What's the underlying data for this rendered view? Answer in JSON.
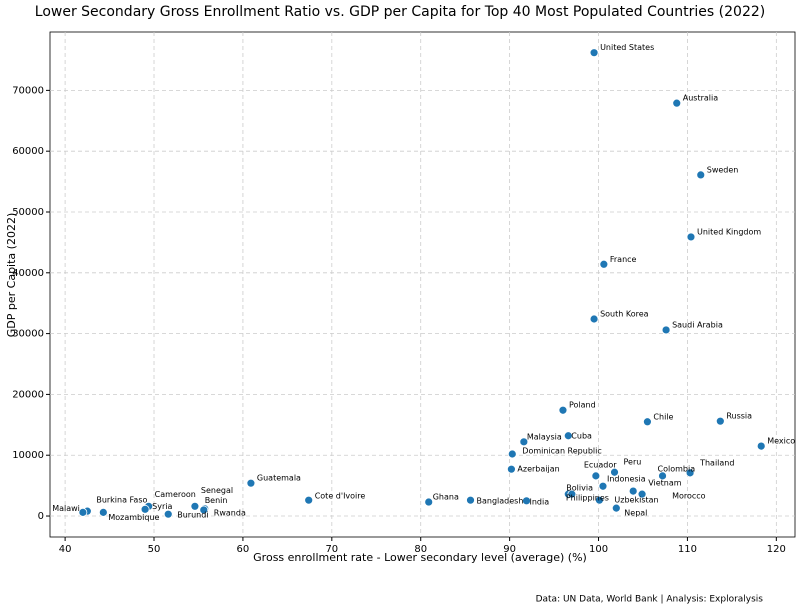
{
  "chart_data": {
    "type": "scatter",
    "title": "Lower Secondary Gross Enrollment Ratio vs. GDP per Capita for Top 40 Most Populated Countries (2022)",
    "x_label": "Gross enrollment rate - Lower secondary level (average) (%)",
    "y_label": "GDP per Capita (2022)",
    "source": "Data: UN Data, World Bank | Analysis: Exploralysis",
    "color": "#1f77b4",
    "grid": true,
    "xlim": [
      38.3,
      122.1
    ],
    "xticks": [
      40,
      50,
      60,
      70,
      80,
      90,
      100,
      110,
      120
    ],
    "ylim": [
      -3450,
      79600
    ],
    "yticks": [
      0,
      10000,
      20000,
      30000,
      40000,
      50000,
      60000,
      70000
    ],
    "labels": [
      "United States",
      "Australia",
      "Sweden",
      "United Kingdom",
      "France",
      "South Korea",
      "Saudi Arabia",
      "Poland",
      "Chile",
      "Russia",
      "Mexico",
      "Cuba",
      "Malaysia",
      "Dominican Republic",
      "Azerbaijan",
      "Ecuador",
      "Peru",
      "Colombia",
      "Thailand",
      "Indonesia",
      "Vietnam",
      "Morocco",
      "Bolivia",
      "Philippines",
      "Uzbekistan",
      "Nepal",
      "India",
      "Bangladesh",
      "Ghana",
      "Cote d'Ivoire",
      "Guatemala",
      "Senegal",
      "Benin",
      "Rwanda",
      "Cameroon",
      "Syria",
      "Burundi",
      "Burkina Faso",
      "Malawi",
      "Mozambique"
    ],
    "x": [
      99.5,
      108.8,
      111.5,
      110.4,
      100.6,
      99.5,
      107.6,
      96.0,
      105.5,
      113.7,
      118.3,
      96.6,
      91.6,
      90.3,
      90.2,
      99.7,
      101.8,
      107.2,
      110.3,
      100.5,
      103.9,
      104.9,
      96.6,
      97.0,
      100.1,
      102.0,
      91.9,
      85.6,
      80.9,
      67.4,
      60.9,
      54.6,
      55.7,
      55.6,
      49.4,
      49.0,
      51.6,
      42.5,
      42.0,
      44.3
    ],
    "y": [
      76200,
      67900,
      56100,
      45900,
      41400,
      32400,
      30600,
      17400,
      15500,
      15600,
      11500,
      13200,
      12200,
      10200,
      7700,
      6600,
      7200,
      6600,
      7100,
      4900,
      4100,
      3600,
      3600,
      3600,
      2600,
      1300,
      2500,
      2600,
      2300,
      2600,
      5400,
      1600,
      1200,
      1000,
      1600,
      1100,
      300,
      800,
      600,
      600
    ]
  }
}
